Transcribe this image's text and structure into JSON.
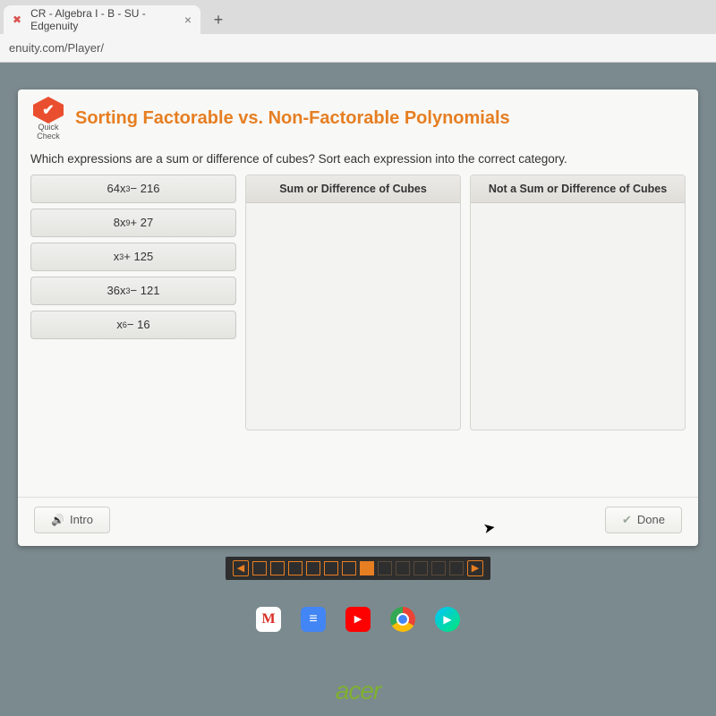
{
  "browser": {
    "tab_title": "CR - Algebra I - B - SU - Edgenuity",
    "url": "enuity.com/Player/"
  },
  "header": {
    "quick_check_label_1": "Quick",
    "quick_check_label_2": "Check",
    "title": "Sorting Factorable vs. Non-Factorable Polynomials"
  },
  "instruction": "Which expressions are a sum or difference of cubes? Sort each expression into the correct category.",
  "expressions": [
    {
      "html": "64x<sup>3</sup> − 216"
    },
    {
      "html": "8x<sup>9</sup> + 27"
    },
    {
      "html": "x<sup>3</sup> + 125"
    },
    {
      "html": "36x<sup>3</sup> − 121"
    },
    {
      "html": "x<sup>6</sup> − 16"
    }
  ],
  "drop_zones": {
    "left": "Sum or Difference of Cubes",
    "right": "Not a Sum or Difference of Cubes"
  },
  "footer": {
    "intro": "Intro",
    "done": "Done"
  },
  "progress": {
    "total": 12,
    "current_index": 6
  },
  "laptop_brand": "acer",
  "colors": {
    "accent": "#e67e22",
    "card_bg": "#f8f8f6",
    "screen_bg": "#7b8a8f"
  }
}
